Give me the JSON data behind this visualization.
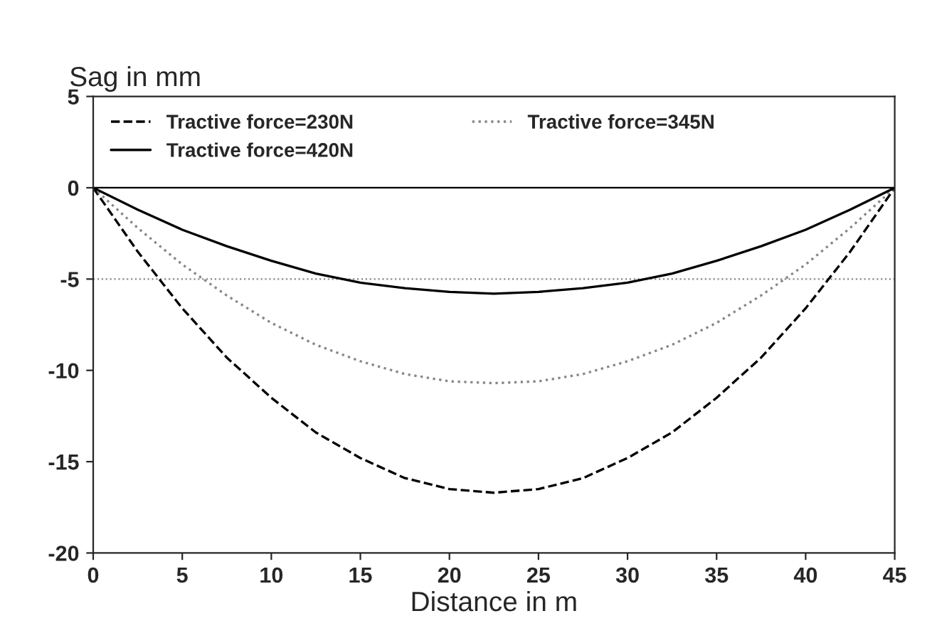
{
  "chart_data": {
    "type": "line",
    "ylabel": "Sag in mm",
    "xlabel": "Distance in m",
    "x": [
      0,
      2.5,
      5,
      7.5,
      10,
      12.5,
      15,
      17.5,
      20,
      22.5,
      25,
      27.5,
      30,
      32.5,
      35,
      37.5,
      40,
      42.5,
      45
    ],
    "series": [
      {
        "name": "Tractive force=230N",
        "color": "#000000",
        "line_style": "dashed",
        "values": [
          0,
          -3.5,
          -6.6,
          -9.3,
          -11.5,
          -13.4,
          -14.8,
          -15.9,
          -16.5,
          -16.7,
          -16.5,
          -15.9,
          -14.8,
          -13.4,
          -11.5,
          -9.3,
          -6.6,
          -3.5,
          0
        ]
      },
      {
        "name": "Tractive force=345N",
        "color": "#888888",
        "line_style": "dotted",
        "values": [
          0,
          -2.2,
          -4.2,
          -5.9,
          -7.4,
          -8.6,
          -9.5,
          -10.2,
          -10.6,
          -10.7,
          -10.6,
          -10.2,
          -9.5,
          -8.6,
          -7.4,
          -5.9,
          -4.2,
          -2.2,
          0
        ]
      },
      {
        "name": "Tractive force=420N",
        "color": "#000000",
        "line_style": "solid",
        "values": [
          0,
          -1.2,
          -2.3,
          -3.2,
          -4.0,
          -4.7,
          -5.2,
          -5.5,
          -5.7,
          -5.8,
          -5.7,
          -5.5,
          -5.2,
          -4.7,
          -4.0,
          -3.2,
          -2.3,
          -1.2,
          0
        ]
      }
    ],
    "xlim": [
      0,
      45
    ],
    "xticks": [
      0,
      5,
      10,
      15,
      20,
      25,
      30,
      35,
      40,
      45
    ],
    "ylim": [
      -20,
      5
    ],
    "yticks": [
      -20,
      -15,
      -10,
      -5,
      0,
      5
    ],
    "ref_lines": [
      {
        "axis": "y",
        "value": 0,
        "color": "#000000",
        "line_style": "solid"
      },
      {
        "axis": "y",
        "value": -5,
        "color": "#888888",
        "line_style": "dotted"
      }
    ],
    "legend": "top left",
    "grid": false
  }
}
